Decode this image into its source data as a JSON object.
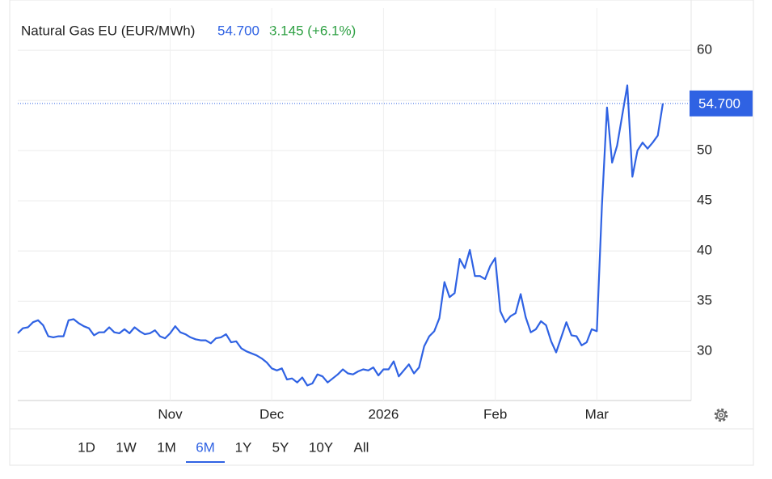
{
  "chart_data": {
    "type": "line",
    "title": "Natural Gas EU (EUR/MWh)",
    "price": "54.700",
    "change": "3.145 (+6.1%)",
    "last_label": "54.700",
    "color": "#2f62e3",
    "grid": true,
    "categories": [
      null,
      null,
      null,
      null,
      null,
      null,
      null,
      null,
      null,
      null,
      null,
      null,
      null,
      null,
      null,
      null,
      null,
      null,
      null,
      null,
      null,
      null,
      null,
      null,
      null,
      null,
      null,
      null,
      null,
      null,
      "Nov",
      null,
      null,
      null,
      null,
      null,
      null,
      null,
      null,
      null,
      null,
      null,
      null,
      null,
      null,
      null,
      null,
      null,
      null,
      null,
      "Dec",
      null,
      null,
      null,
      null,
      null,
      null,
      null,
      null,
      null,
      null,
      null,
      null,
      null,
      null,
      null,
      null,
      null,
      null,
      null,
      null,
      null,
      "2026",
      null,
      null,
      null,
      null,
      null,
      null,
      null,
      null,
      null,
      null,
      null,
      null,
      null,
      null,
      null,
      null,
      null,
      null,
      null,
      null,
      null,
      "Feb",
      null,
      null,
      null,
      null,
      null,
      null,
      null,
      null,
      null,
      null,
      null,
      null,
      null,
      null,
      null,
      null,
      null,
      null,
      null,
      "Mar",
      null,
      null,
      null,
      null,
      null,
      null,
      null,
      null,
      null,
      null,
      null,
      null,
      null
    ],
    "values": [
      31.8,
      32.3,
      32.4,
      32.9,
      33.1,
      32.6,
      31.5,
      31.4,
      31.5,
      31.5,
      33.1,
      33.2,
      32.8,
      32.5,
      32.3,
      31.6,
      31.9,
      31.9,
      32.4,
      31.9,
      31.8,
      32.2,
      31.8,
      32.4,
      32.0,
      31.7,
      31.8,
      32.1,
      31.5,
      31.3,
      31.8,
      32.5,
      31.9,
      31.7,
      31.4,
      31.2,
      31.1,
      31.1,
      30.8,
      31.3,
      31.4,
      31.7,
      30.9,
      31.0,
      30.3,
      30.0,
      29.8,
      29.6,
      29.3,
      28.9,
      28.3,
      28.1,
      28.3,
      27.2,
      27.3,
      26.9,
      27.4,
      26.6,
      26.8,
      27.7,
      27.5,
      26.9,
      27.3,
      27.7,
      28.2,
      27.8,
      27.7,
      28.0,
      28.2,
      28.1,
      28.4,
      27.6,
      28.2,
      28.2,
      29.0,
      27.5,
      28.1,
      28.7,
      27.8,
      28.4,
      30.5,
      31.5,
      32.0,
      33.3,
      36.9,
      35.4,
      35.8,
      39.2,
      38.3,
      40.1,
      37.5,
      37.5,
      37.2,
      38.5,
      39.3,
      34.0,
      32.9,
      33.5,
      33.8,
      35.7,
      33.4,
      31.9,
      32.2,
      33.0,
      32.6,
      31.0,
      29.9,
      31.4,
      32.9,
      31.6,
      31.5,
      30.6,
      30.9,
      32.2,
      32.0,
      44.5,
      54.3,
      48.8,
      50.5,
      53.5,
      56.5,
      47.4,
      50.0,
      50.8,
      50.2,
      50.8,
      51.5,
      54.7
    ],
    "ylim": [
      25.1,
      64.2
    ],
    "yticks": [
      30,
      35,
      40,
      45,
      50,
      55,
      60
    ],
    "ytick_labels_shown": [
      30,
      35,
      40,
      45,
      50,
      60
    ],
    "ranges": [
      "1D",
      "1W",
      "1M",
      "6M",
      "1Y",
      "5Y",
      "10Y",
      "All"
    ],
    "selected_range": "6M"
  }
}
